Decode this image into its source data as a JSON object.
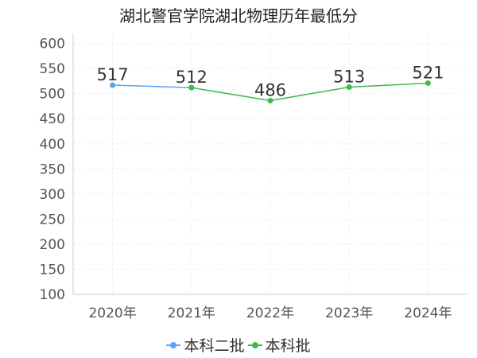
{
  "chart_data": {
    "type": "line",
    "title": "湖北警官学院湖北物理历年最低分",
    "categories": [
      "2020年",
      "2021年",
      "2022年",
      "2023年",
      "2024年"
    ],
    "ylim": [
      100,
      620
    ],
    "yticks": [
      100,
      150,
      200,
      250,
      300,
      350,
      400,
      450,
      500,
      550,
      600
    ],
    "grid": true,
    "legend_position": "bottom",
    "series": [
      {
        "name": "本科二批",
        "color": "#5aa4f5",
        "values": [
          517,
          512,
          null,
          null,
          null
        ]
      },
      {
        "name": "本科批",
        "color": "#3dbb4c",
        "values": [
          null,
          512,
          486,
          513,
          521
        ]
      }
    ],
    "data_labels": [
      "517",
      "512",
      "486",
      "513",
      "521"
    ]
  }
}
